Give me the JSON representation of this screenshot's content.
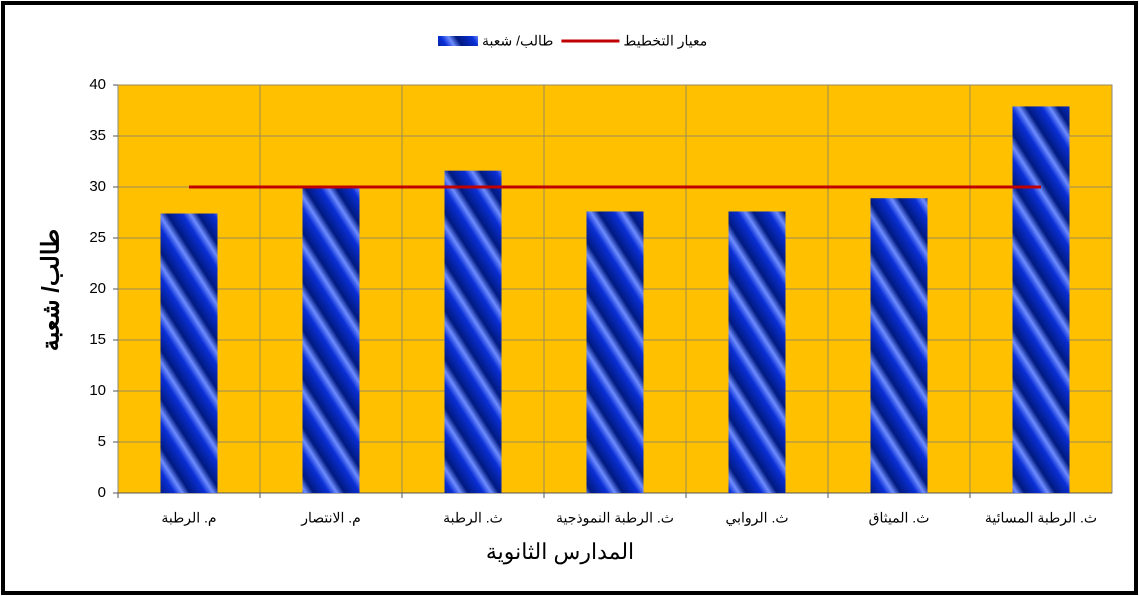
{
  "chart_data": {
    "type": "bar",
    "categories": [
      "م. الرطبة",
      "م. الانتصار",
      "ث. الرطبة",
      "ث. الرطبة النموذجية",
      "ث. الروابي",
      "ث. الميثاق",
      "ث. الرطبة المسائية"
    ],
    "series": [
      {
        "name": "طالب/ شعبة",
        "type": "bar",
        "color": "#0a2fd6",
        "values": [
          27.4,
          30,
          31.6,
          27.6,
          27.6,
          28.9,
          37.9
        ]
      },
      {
        "name": "معيار التخطيط",
        "type": "line",
        "color": "#c00000",
        "values": [
          30,
          30,
          30,
          30,
          30,
          30,
          30
        ]
      }
    ],
    "y_label": "طالب/ شعبة",
    "x_label": "المدارس الثانوية",
    "ylim": [
      0,
      40
    ],
    "yticks": [
      0,
      5,
      10,
      15,
      20,
      25,
      30,
      35,
      40
    ],
    "grid": true,
    "plot_background": "#ffc000",
    "legend": "top"
  }
}
